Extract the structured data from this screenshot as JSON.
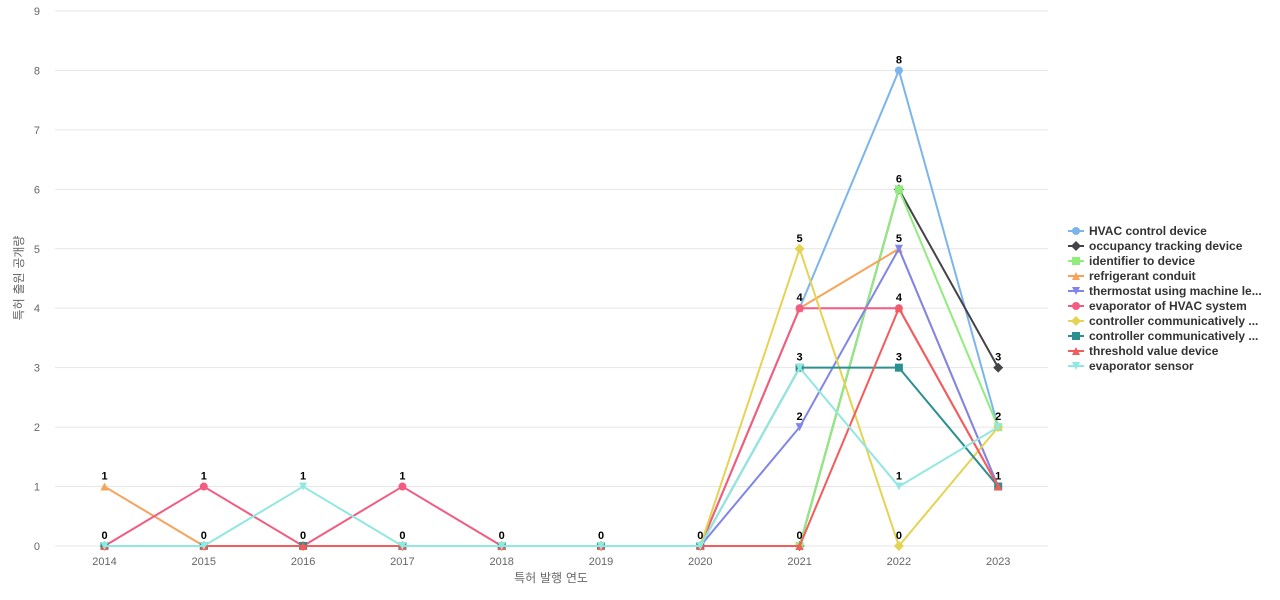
{
  "chart_data": {
    "type": "line",
    "title": "",
    "xlabel": "특허 발행 연도",
    "ylabel": "특허 출원 공개량",
    "x": [
      "2014",
      "2015",
      "2016",
      "2017",
      "2018",
      "2019",
      "2020",
      "2021",
      "2022",
      "2023"
    ],
    "ylim": [
      0,
      9
    ],
    "yticks": [
      0,
      1,
      2,
      3,
      4,
      5,
      6,
      7,
      8,
      9
    ],
    "grid": true,
    "legend_position": "right",
    "series": [
      {
        "name": "HVAC control device",
        "color": "#7cb5ec",
        "marker": "circle",
        "values": [
          0,
          0,
          0,
          0,
          0,
          0,
          0,
          4,
          8,
          2
        ]
      },
      {
        "name": "occupancy tracking device",
        "color": "#434348",
        "marker": "diamond",
        "values": [
          0,
          0,
          0,
          0,
          0,
          0,
          0,
          0,
          6,
          3
        ]
      },
      {
        "name": "identifier to device",
        "color": "#90ed7d",
        "marker": "square",
        "values": [
          0,
          0,
          0,
          0,
          0,
          0,
          0,
          0,
          6,
          2
        ]
      },
      {
        "name": "refrigerant conduit",
        "color": "#f7a35c",
        "marker": "triangle",
        "values": [
          1,
          0,
          0,
          0,
          0,
          0,
          0,
          4,
          5,
          1
        ]
      },
      {
        "name": "thermostat using machine le...",
        "color": "#8085e9",
        "marker": "triangle-down",
        "values": [
          0,
          0,
          0,
          0,
          0,
          0,
          0,
          2,
          5,
          1
        ]
      },
      {
        "name": "evaporator of HVAC system",
        "color": "#f15c80",
        "marker": "circle",
        "values": [
          0,
          1,
          0,
          1,
          0,
          0,
          0,
          4,
          4,
          1
        ]
      },
      {
        "name": "controller communicatively ...",
        "color": "#e4d354",
        "marker": "diamond",
        "values": [
          0,
          0,
          0,
          0,
          0,
          0,
          0,
          5,
          0,
          2
        ]
      },
      {
        "name": "controller communicatively ...",
        "color": "#2b908f",
        "marker": "square",
        "values": [
          0,
          0,
          0,
          0,
          0,
          0,
          0,
          3,
          3,
          1
        ]
      },
      {
        "name": "threshold value device",
        "color": "#f45b5b",
        "marker": "triangle",
        "values": [
          0,
          0,
          0,
          0,
          0,
          0,
          0,
          0,
          4,
          1
        ]
      },
      {
        "name": "evaporator sensor",
        "color": "#91e8e1",
        "marker": "triangle-down",
        "values": [
          0,
          0,
          1,
          0,
          0,
          0,
          0,
          3,
          1,
          2
        ]
      }
    ],
    "data_labels": [
      {
        "x": "2014",
        "y": 1,
        "text": "1"
      },
      {
        "x": "2014",
        "y": 0,
        "text": "0"
      },
      {
        "x": "2015",
        "y": 1,
        "text": "1"
      },
      {
        "x": "2015",
        "y": 0,
        "text": "0"
      },
      {
        "x": "2016",
        "y": 1,
        "text": "1"
      },
      {
        "x": "2016",
        "y": 0,
        "text": "0"
      },
      {
        "x": "2017",
        "y": 1,
        "text": "1"
      },
      {
        "x": "2017",
        "y": 0,
        "text": "0"
      },
      {
        "x": "2018",
        "y": 0,
        "text": "0"
      },
      {
        "x": "2019",
        "y": 0,
        "text": "0"
      },
      {
        "x": "2020",
        "y": 0,
        "text": "0"
      },
      {
        "x": "2021",
        "y": 5,
        "text": "5"
      },
      {
        "x": "2021",
        "y": 4,
        "text": "4"
      },
      {
        "x": "2021",
        "y": 3,
        "text": "3"
      },
      {
        "x": "2021",
        "y": 2,
        "text": "2"
      },
      {
        "x": "2021",
        "y": 0,
        "text": "0"
      },
      {
        "x": "2022",
        "y": 8,
        "text": "8"
      },
      {
        "x": "2022",
        "y": 6,
        "text": "6"
      },
      {
        "x": "2022",
        "y": 5,
        "text": "5"
      },
      {
        "x": "2022",
        "y": 4,
        "text": "4"
      },
      {
        "x": "2022",
        "y": 3,
        "text": "3"
      },
      {
        "x": "2022",
        "y": 1,
        "text": "1"
      },
      {
        "x": "2022",
        "y": 0,
        "text": "0"
      },
      {
        "x": "2023",
        "y": 3,
        "text": "3"
      },
      {
        "x": "2023",
        "y": 2,
        "text": "2"
      },
      {
        "x": "2023",
        "y": 1,
        "text": "1"
      }
    ]
  }
}
